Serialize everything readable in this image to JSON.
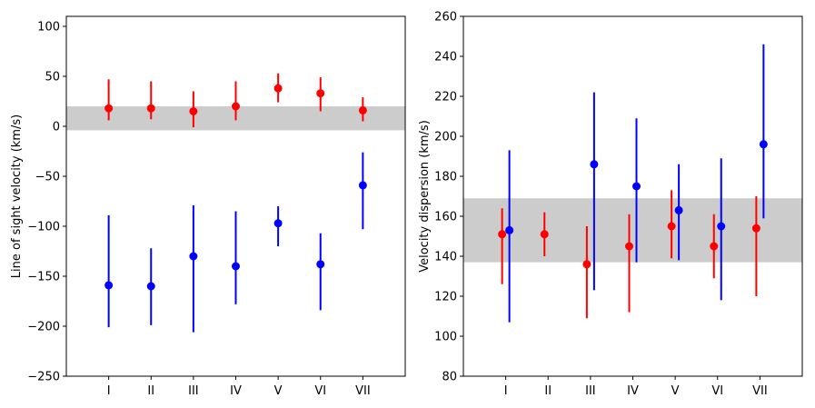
{
  "chart_data": [
    {
      "type": "scatter",
      "title": "",
      "xlabel": "",
      "ylabel": "Line of sight velocity (km/s)",
      "categories": [
        "I",
        "II",
        "III",
        "IV",
        "V",
        "VI",
        "VII"
      ],
      "ylim": [
        -250,
        110
      ],
      "yticks": [
        -250,
        -200,
        -150,
        -100,
        -50,
        0,
        50,
        100
      ],
      "ytick_labels": [
        "−250",
        "−200",
        "−150",
        "−100",
        "−50",
        "0",
        "50",
        "100"
      ],
      "band": {
        "low": -4,
        "high": 20,
        "color": "#cccccc"
      },
      "grid": false,
      "series": [
        {
          "color": "#ff0000",
          "points": [
            {
              "x": 1,
              "y": 18,
              "low": 6,
              "high": 47
            },
            {
              "x": 2,
              "y": 18,
              "low": 7,
              "high": 45
            },
            {
              "x": 3,
              "y": 15,
              "low": -1,
              "high": 35
            },
            {
              "x": 4,
              "y": 20,
              "low": 6,
              "high": 45
            },
            {
              "x": 5,
              "y": 38,
              "low": 24,
              "high": 53
            },
            {
              "x": 6,
              "y": 33,
              "low": 15,
              "high": 49
            },
            {
              "x": 7,
              "y": 16,
              "low": 5,
              "high": 29
            }
          ]
        },
        {
          "color": "#0000ff",
          "points": [
            {
              "x": 1,
              "y": -159,
              "low": -201,
              "high": -89
            },
            {
              "x": 2,
              "y": -160,
              "low": -199,
              "high": -122
            },
            {
              "x": 3,
              "y": -130,
              "low": -206,
              "high": -79
            },
            {
              "x": 4,
              "y": -140,
              "low": -178,
              "high": -85
            },
            {
              "x": 5,
              "y": -97,
              "low": -120,
              "high": -80
            },
            {
              "x": 6,
              "y": -138,
              "low": -184,
              "high": -107
            },
            {
              "x": 7,
              "y": -59,
              "low": -103,
              "high": -26
            }
          ]
        }
      ]
    },
    {
      "type": "scatter",
      "title": "",
      "xlabel": "",
      "ylabel": "Velocity dispersion (km/s)",
      "categories": [
        "I",
        "II",
        "III",
        "IV",
        "V",
        "VI",
        "VII"
      ],
      "ylim": [
        80,
        260
      ],
      "yticks": [
        80,
        100,
        120,
        140,
        160,
        180,
        200,
        220,
        240,
        260
      ],
      "ytick_labels": [
        "80",
        "100",
        "120",
        "140",
        "160",
        "180",
        "200",
        "220",
        "240",
        "260"
      ],
      "band": {
        "low": 137,
        "high": 169,
        "color": "#cccccc"
      },
      "grid": false,
      "series": [
        {
          "color": "#ff0000",
          "points": [
            {
              "x": 1,
              "y": 151,
              "low": 126,
              "high": 164
            },
            {
              "x": 2,
              "y": 151,
              "low": 140,
              "high": 162
            },
            {
              "x": 3,
              "y": 136,
              "low": 109,
              "high": 155
            },
            {
              "x": 4,
              "y": 145,
              "low": 112,
              "high": 161
            },
            {
              "x": 5,
              "y": 155,
              "low": 139,
              "high": 173
            },
            {
              "x": 6,
              "y": 145,
              "low": 129,
              "high": 161
            },
            {
              "x": 7,
              "y": 154,
              "low": 120,
              "high": 170
            }
          ]
        },
        {
          "color": "#0000ff",
          "points": [
            {
              "x": 1,
              "y": 153,
              "low": 107,
              "high": 193
            },
            {
              "x": 3,
              "y": 186,
              "low": 123,
              "high": 222
            },
            {
              "x": 4,
              "y": 175,
              "low": 137,
              "high": 209
            },
            {
              "x": 5,
              "y": 163,
              "low": 138,
              "high": 186
            },
            {
              "x": 6,
              "y": 155,
              "low": 118,
              "high": 189
            },
            {
              "x": 7,
              "y": 196,
              "low": 159,
              "high": 246
            }
          ]
        }
      ]
    }
  ]
}
